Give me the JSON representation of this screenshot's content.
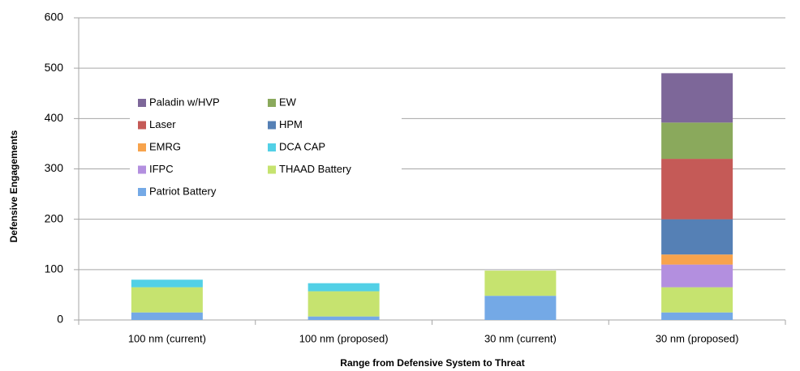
{
  "chart_data": {
    "type": "stacked_bar",
    "y_label": "Defensive Engagements",
    "x_label": "Range from Defensive System to Threat",
    "categories": [
      "100 nm (current)",
      "100 nm (proposed)",
      "30 nm (current)",
      "30 nm (proposed)"
    ],
    "series": [
      {
        "name": "Patriot Battery",
        "color": "#74a9e6",
        "values": [
          15,
          7,
          48,
          15
        ]
      },
      {
        "name": "THAAD Battery",
        "color": "#c6e36f",
        "values": [
          50,
          50,
          50,
          50
        ]
      },
      {
        "name": "IFPC",
        "color": "#b38fdf",
        "values": [
          0,
          0,
          0,
          45
        ]
      },
      {
        "name": "DCA CAP",
        "color": "#52d0e6",
        "values": [
          15,
          16,
          0,
          0
        ]
      },
      {
        "name": "EMRG",
        "color": "#f7a34c",
        "values": [
          0,
          0,
          0,
          20
        ]
      },
      {
        "name": "HPM",
        "color": "#5580b5",
        "values": [
          0,
          0,
          0,
          70
        ]
      },
      {
        "name": "Laser",
        "color": "#c55a57",
        "values": [
          0,
          0,
          0,
          120
        ]
      },
      {
        "name": "EW",
        "color": "#8aa95c",
        "values": [
          0,
          0,
          0,
          72
        ]
      },
      {
        "name": "Paladin w/HVP",
        "color": "#7d6799",
        "values": [
          0,
          0,
          0,
          98
        ]
      }
    ],
    "ylim": [
      0,
      600
    ],
    "yticks": [
      0,
      100,
      200,
      300,
      400,
      500,
      600
    ],
    "grid": true
  }
}
